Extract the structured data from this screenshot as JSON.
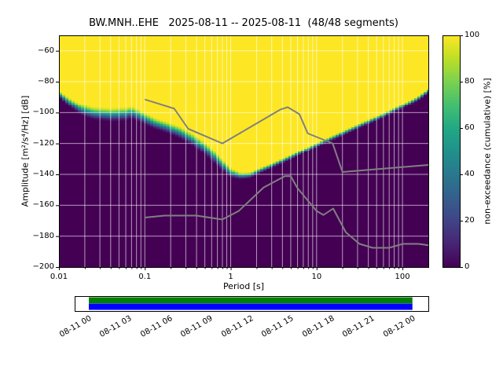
{
  "chart_data": {
    "type": "heatmap",
    "title": "BW.MNH..EHE   2025-08-11 -- 2025-08-11  (48/48 segments)",
    "xlabel": "Period [s]",
    "ylabel": "Amplitude [m²/s⁴/Hz] [dB]",
    "x_scale": "log",
    "xlim": [
      0.01,
      200
    ],
    "ylim": [
      -200,
      -50
    ],
    "grid": true,
    "x_ticks": [
      0.01,
      0.1,
      1,
      10,
      100
    ],
    "x_tick_labels": [
      "0.01",
      "0.1",
      "1",
      "10",
      "100"
    ],
    "y_ticks": [
      -60,
      -80,
      -100,
      -120,
      -140,
      -160,
      -180,
      -200
    ],
    "y_tick_labels": [
      "−60",
      "−80",
      "−100",
      "−120",
      "−140",
      "−160",
      "−180",
      "−200"
    ],
    "colorbar": {
      "label": "non-exceedance (cumulative) [%]",
      "range": [
        0,
        100
      ],
      "ticks": [
        0,
        20,
        40,
        60,
        80,
        100
      ],
      "tick_labels": [
        "0",
        "20",
        "40",
        "60",
        "80",
        "100"
      ],
      "colormap": "viridis"
    },
    "colormap_stops": [
      [
        0.0,
        "#440154"
      ],
      [
        0.1,
        "#482475"
      ],
      [
        0.2,
        "#414487"
      ],
      [
        0.3,
        "#355f8d"
      ],
      [
        0.4,
        "#2a788e"
      ],
      [
        0.5,
        "#21918c"
      ],
      [
        0.6,
        "#22a884"
      ],
      [
        0.7,
        "#44bf70"
      ],
      [
        0.8,
        "#7ad151"
      ],
      [
        0.9,
        "#bddf26"
      ],
      [
        1.0,
        "#fde725"
      ]
    ],
    "distribution_median": [
      [
        0.01,
        -88
      ],
      [
        0.013,
        -93
      ],
      [
        0.018,
        -98
      ],
      [
        0.025,
        -100.5
      ],
      [
        0.04,
        -101.5
      ],
      [
        0.06,
        -101
      ],
      [
        0.07,
        -100
      ],
      [
        0.085,
        -102
      ],
      [
        0.1,
        -104
      ],
      [
        0.13,
        -107
      ],
      [
        0.18,
        -109.5
      ],
      [
        0.25,
        -112.5
      ],
      [
        0.35,
        -117
      ],
      [
        0.5,
        -123
      ],
      [
        0.65,
        -129
      ],
      [
        0.8,
        -134
      ],
      [
        1.0,
        -139
      ],
      [
        1.3,
        -141
      ],
      [
        1.7,
        -140.5
      ],
      [
        2.0,
        -138.5
      ],
      [
        3,
        -134.5
      ],
      [
        5,
        -129
      ],
      [
        8,
        -123.5
      ],
      [
        12,
        -119
      ],
      [
        20,
        -113.5
      ],
      [
        35,
        -107.5
      ],
      [
        60,
        -102
      ],
      [
        100,
        -96
      ],
      [
        150,
        -91
      ],
      [
        200,
        -86
      ]
    ],
    "distribution_spread": [
      [
        0.01,
        2.5
      ],
      [
        0.02,
        4.5
      ],
      [
        0.05,
        5
      ],
      [
        0.09,
        4.5
      ],
      [
        0.15,
        4
      ],
      [
        0.3,
        4.5
      ],
      [
        0.6,
        5
      ],
      [
        0.9,
        4
      ],
      [
        1.3,
        2.5
      ],
      [
        2,
        2
      ],
      [
        4,
        1.8
      ],
      [
        10,
        1.8
      ],
      [
        30,
        1.8
      ],
      [
        200,
        1.8
      ]
    ],
    "noise_models": {
      "high_noise_model": [
        [
          0.1,
          -91.5
        ],
        [
          0.22,
          -97.4
        ],
        [
          0.32,
          -110.5
        ],
        [
          0.8,
          -120.0
        ],
        [
          3.8,
          -98.0
        ],
        [
          4.6,
          -96.5
        ],
        [
          6.3,
          -101.0
        ],
        [
          7.9,
          -113.5
        ],
        [
          15.4,
          -120.0
        ],
        [
          20.0,
          -138.5
        ],
        [
          200.0,
          -133.9
        ]
      ],
      "low_noise_model": [
        [
          0.1,
          -168.0
        ],
        [
          0.17,
          -166.7
        ],
        [
          0.4,
          -166.7
        ],
        [
          0.8,
          -169.2
        ],
        [
          1.24,
          -163.7
        ],
        [
          2.4,
          -148.6
        ],
        [
          4.3,
          -141.1
        ],
        [
          5.0,
          -141.1
        ],
        [
          6.0,
          -149.0
        ],
        [
          10.0,
          -163.7
        ],
        [
          12.0,
          -166.3
        ],
        [
          15.6,
          -162.1
        ],
        [
          21.9,
          -177.5
        ],
        [
          31.6,
          -185.0
        ],
        [
          45.0,
          -187.5
        ],
        [
          70.0,
          -187.5
        ],
        [
          101.0,
          -185.0
        ],
        [
          154.0,
          -185.0
        ],
        [
          200.0,
          -185.9
        ]
      ],
      "line_color": "#808080"
    }
  },
  "timeline": {
    "tick_labels": [
      "08-11 00",
      "08-11 03",
      "08-11 06",
      "08-11 09",
      "08-11 12",
      "08-11 15",
      "08-11 18",
      "08-11 21",
      "08-12 00"
    ],
    "coverage_start": 0.04,
    "coverage_end": 0.955,
    "bar_top_color": "#008000",
    "bar_bottom_color": "#0000ff"
  }
}
